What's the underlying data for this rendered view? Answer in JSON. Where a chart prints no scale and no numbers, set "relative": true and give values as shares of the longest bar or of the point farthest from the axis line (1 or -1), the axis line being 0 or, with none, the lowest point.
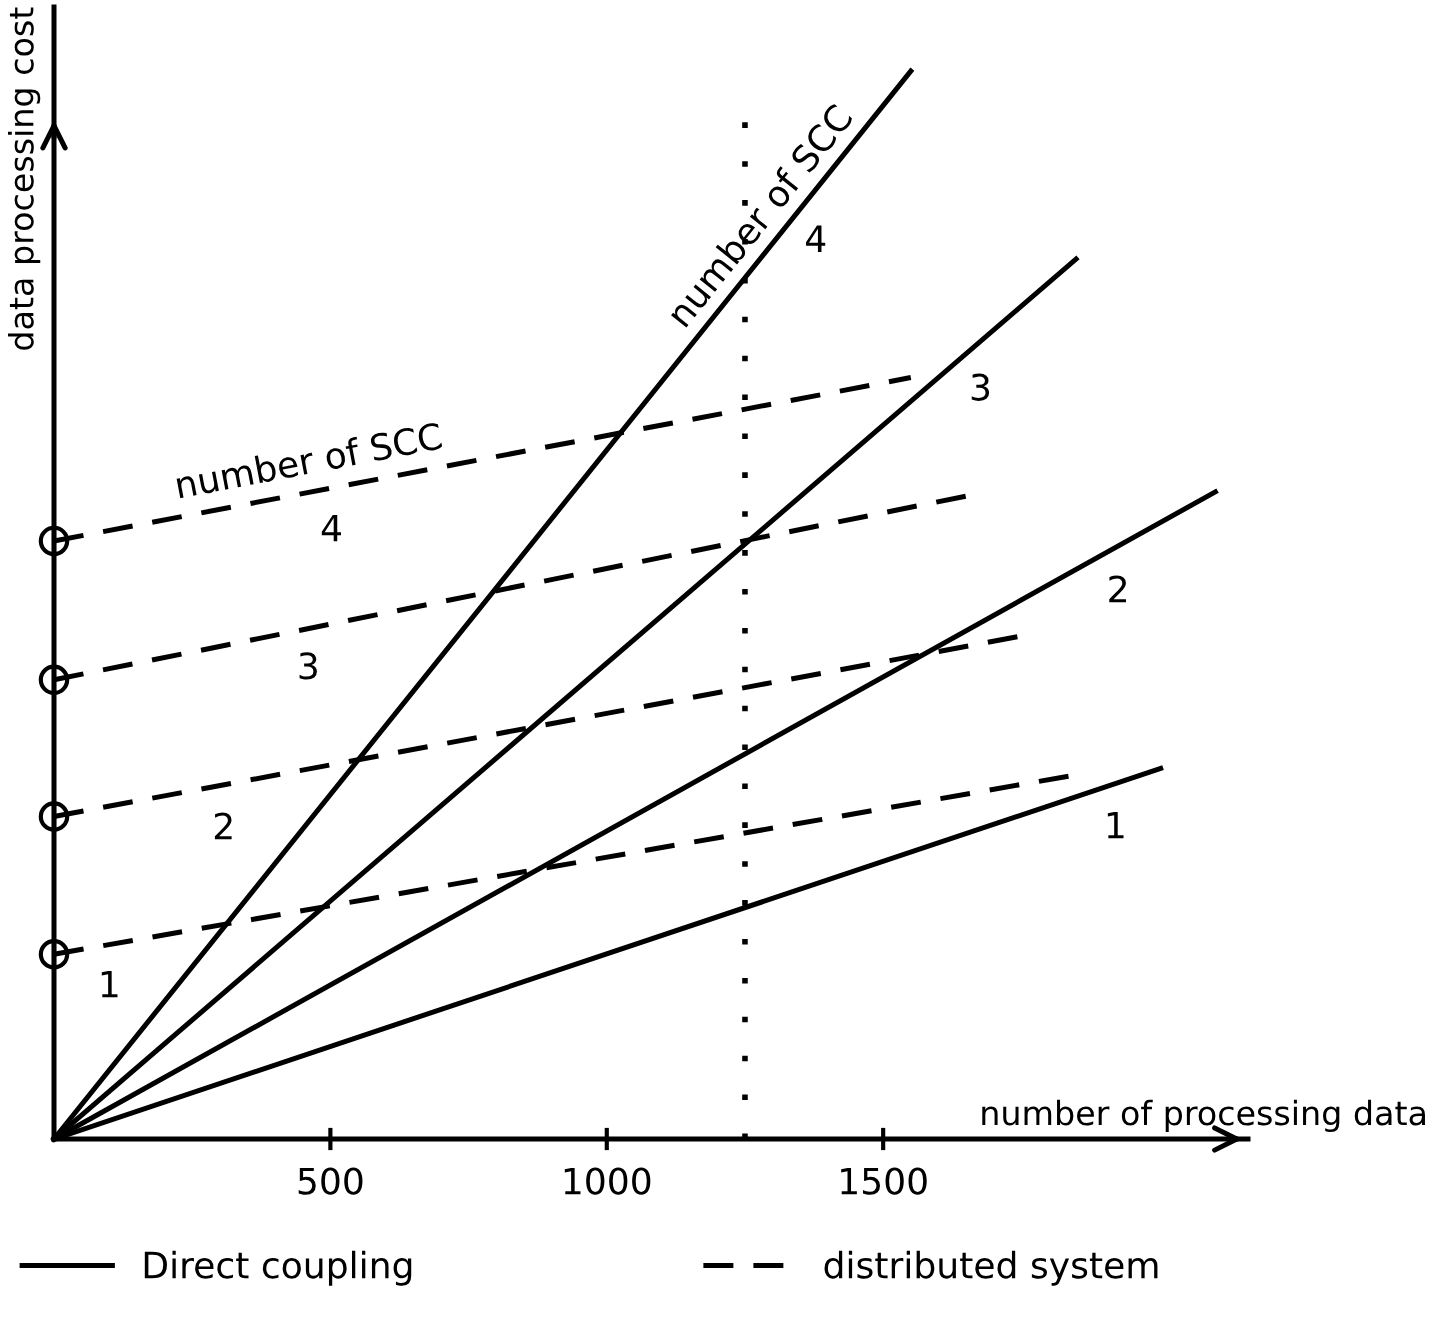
{
  "chart_data": {
    "type": "line",
    "relative": true,
    "xlabel": "number of processing data",
    "ylabel": "data processing cost",
    "xlim": [
      0,
      2160
    ],
    "xticks": [
      500,
      1000,
      1500
    ],
    "grid": false,
    "legend": "bottom",
    "series": [
      {
        "name": "Direct coupling",
        "color": "#000000",
        "line_style": "solid",
        "x": [
          0,
          2002
        ],
        "values": [
          0,
          0.347
        ]
      },
      {
        "color": "#000000",
        "line_style": "solid",
        "x": [
          0,
          2101
        ],
        "values": [
          0,
          0.606
        ]
      },
      {
        "color": "#000000",
        "line_style": "solid",
        "x": [
          0,
          1849
        ],
        "values": [
          0,
          0.824
        ]
      },
      {
        "color": "#000000",
        "line_style": "solid",
        "x": [
          0,
          1550
        ],
        "values": [
          0,
          1.0
        ]
      },
      {
        "name": "distributed system",
        "color": "#000000",
        "line_style": "dashed",
        "x": [
          0,
          1849
        ],
        "values": [
          0.173,
          0.341
        ]
      },
      {
        "color": "#000000",
        "line_style": "dashed",
        "x": [
          0,
          1750
        ],
        "values": [
          0.302,
          0.471
        ]
      },
      {
        "color": "#000000",
        "line_style": "dashed",
        "x": [
          0,
          1650
        ],
        "values": [
          0.43,
          0.602
        ]
      },
      {
        "color": "#000000",
        "line_style": "dashed",
        "x": [
          0,
          1550
        ],
        "values": [
          0.56,
          0.713
        ]
      },
      {
        "type": "scatter",
        "marker": "circle",
        "color": "#000000",
        "x": [
          0,
          0,
          0,
          0
        ],
        "values": [
          0.173,
          0.302,
          0.43,
          0.56
        ]
      }
    ],
    "ref_lines": [
      {
        "axis": "x",
        "value": 1250,
        "line_style": "dotted",
        "color": "#000000"
      }
    ],
    "annotations": [
      {
        "text": "1",
        "x": 1905,
        "y": 0.33
      },
      {
        "text": "2",
        "x": 1910,
        "y": 0.551
      },
      {
        "text": "3",
        "x": 1661,
        "y": 0.74
      },
      {
        "text": "4",
        "x": 1363,
        "y": 0.879
      },
      {
        "text": "1",
        "x": 85,
        "y": 0.181
      },
      {
        "text": "2",
        "x": 292,
        "y": 0.329
      },
      {
        "text": "3",
        "x": 445,
        "y": 0.479
      },
      {
        "text": "4",
        "x": 487,
        "y": 0.608
      },
      {
        "text": "number of SCC",
        "x": 1305,
        "y": 0.842
      },
      {
        "text": "number of SCC",
        "x": 467,
        "y": 0.606
      }
    ]
  }
}
